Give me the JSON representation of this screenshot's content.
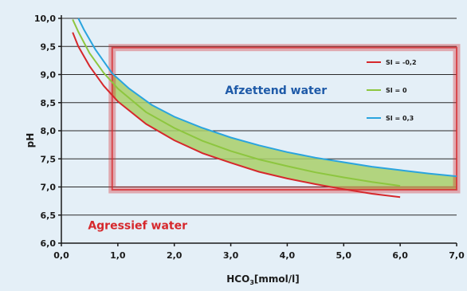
{
  "chart_data": {
    "type": "line",
    "xlabel": "HCO",
    "xlabel_sub": "3",
    "xlabel_unit": "[mmol/l]",
    "ylabel": "pH",
    "xlim": [
      0,
      7
    ],
    "ylim": [
      6,
      10
    ],
    "xticks": [
      "0,0",
      "1,0",
      "2,0",
      "3,0",
      "4,0",
      "5,0",
      "6,0",
      "7,0"
    ],
    "yticks": [
      "6,0",
      "6,5",
      "7,0",
      "7,5",
      "8,0",
      "8,5",
      "9,0",
      "9,5",
      "10,0"
    ],
    "grid": "horizontal",
    "legend_position": "top-right",
    "series": [
      {
        "name": "SI = -0,2",
        "color": "#d6282c",
        "x": [
          0.2,
          0.3,
          0.5,
          0.75,
          1,
          1.5,
          2,
          2.5,
          3,
          3.5,
          4,
          4.5,
          5,
          5.5,
          6
        ],
        "y": [
          9.75,
          9.5,
          9.15,
          8.8,
          8.52,
          8.12,
          7.83,
          7.6,
          7.43,
          7.27,
          7.15,
          7.05,
          6.96,
          6.88,
          6.82
        ]
      },
      {
        "name": "SI = 0",
        "color": "#8dc63f",
        "x": [
          0.2,
          0.3,
          0.5,
          0.75,
          1,
          1.5,
          2,
          2.5,
          3,
          3.5,
          4,
          4.5,
          5,
          5.5,
          6
        ],
        "y": [
          9.98,
          9.76,
          9.38,
          9.03,
          8.75,
          8.33,
          8.05,
          7.82,
          7.64,
          7.49,
          7.37,
          7.26,
          7.17,
          7.09,
          7.02
        ]
      },
      {
        "name": "SI = 0,3",
        "color": "#2aa4de",
        "x": [
          0.3,
          0.4,
          0.6,
          0.9,
          1.2,
          1.6,
          2,
          2.5,
          3,
          3.5,
          4,
          4.5,
          5,
          5.5,
          6,
          6.5,
          7
        ],
        "y": [
          10.0,
          9.8,
          9.45,
          9.02,
          8.75,
          8.46,
          8.25,
          8.05,
          7.88,
          7.74,
          7.62,
          7.52,
          7.44,
          7.36,
          7.3,
          7.24,
          7.19
        ]
      }
    ],
    "highlight_box": {
      "x": [
        0.9,
        7.0
      ],
      "y": [
        6.95,
        9.48
      ],
      "color": "#d6282c"
    },
    "annotations": [
      {
        "text": "Afzettend water",
        "x": 3.8,
        "y": 8.65,
        "color": "#1e5aa8"
      },
      {
        "text": "Agressief water",
        "x": 1.35,
        "y": 6.25,
        "color": "#d6282c"
      }
    ]
  }
}
